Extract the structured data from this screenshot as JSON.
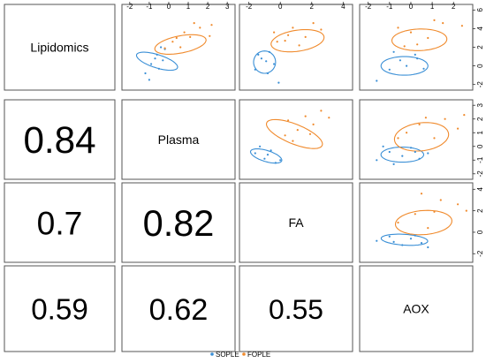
{
  "chart_data": {
    "type": "scatter",
    "subtype": "pairs-matrix",
    "variables": [
      "Lipidomics",
      "Plasma",
      "FA",
      "AOX"
    ],
    "correlations": [
      {
        "row": "Plasma",
        "col": "Lipidomics",
        "value": "0.84"
      },
      {
        "row": "FA",
        "col": "Lipidomics",
        "value": "0.7"
      },
      {
        "row": "FA",
        "col": "Plasma",
        "value": "0.82"
      },
      {
        "row": "AOX",
        "col": "Lipidomics",
        "value": "0.59"
      },
      {
        "row": "AOX",
        "col": "Plasma",
        "value": "0.62"
      },
      {
        "row": "AOX",
        "col": "FA",
        "value": "0.55"
      }
    ],
    "axes": {
      "top": {
        "Plasma": {
          "range": [
            -2.4,
            3.4
          ],
          "ticks": [
            "-2",
            "-1",
            "0",
            "1",
            "2",
            "3"
          ]
        },
        "FA": {
          "range": [
            -2.6,
            4.6
          ],
          "ticks": [
            "-2",
            "0",
            "2",
            "4"
          ]
        },
        "AOX": {
          "range": [
            -2.4,
            2.9
          ],
          "ticks": [
            "-2",
            "-1",
            "0",
            "1",
            "2"
          ]
        }
      },
      "right": {
        "Lipidomics": {
          "range": [
            -2.6,
            6.6
          ],
          "ticks": [
            "-2",
            "0",
            "2",
            "4",
            "6"
          ]
        },
        "Plasma": {
          "range": [
            -2.4,
            3.4
          ],
          "ticks": [
            "-2",
            "-1",
            "0",
            "1",
            "2",
            "3"
          ]
        },
        "FA": {
          "range": [
            -2.8,
            4.6
          ],
          "ticks": [
            "-2",
            "0",
            "2",
            "4"
          ]
        }
      }
    },
    "series": [
      {
        "name": "SOPLE",
        "color": "#3a8fd6"
      },
      {
        "name": "FOPLE",
        "color": "#f08a2c"
      }
    ],
    "panels": [
      {
        "x": "Plasma",
        "y": "Lipidomics",
        "ellipses": {
          "SOPLE": {
            "cx": -0.6,
            "cy": 0.5,
            "rx": 1.2,
            "ry": 2.6,
            "rot": 0.85
          },
          "FOPLE": {
            "cx": 0.6,
            "cy": 2.3,
            "rx": 2.9,
            "ry": 1.7,
            "rot": 0.55
          }
        },
        "points": {
          "SOPLE": [
            [
              -1.2,
              -0.8
            ],
            [
              -0.9,
              0.2
            ],
            [
              -0.6,
              1.2
            ],
            [
              -0.3,
              0.6
            ],
            [
              -0.5,
              -0.3
            ],
            [
              -1.0,
              -1.5
            ],
            [
              -0.2,
              1.8
            ],
            [
              -0.7,
              0.8
            ],
            [
              -0.4,
              2.0
            ]
          ],
          "FOPLE": [
            [
              0.2,
              2.6
            ],
            [
              0.6,
              2.0
            ],
            [
              1.1,
              3.1
            ],
            [
              1.6,
              4.1
            ],
            [
              2.1,
              3.2
            ],
            [
              0.8,
              3.6
            ],
            [
              1.3,
              4.6
            ],
            [
              -0.2,
              1.9
            ],
            [
              0.4,
              3.0
            ],
            [
              2.2,
              4.4
            ]
          ]
        }
      },
      {
        "x": "FA",
        "y": "Lipidomics",
        "ellipses": {
          "SOPLE": {
            "cx": -1.0,
            "cy": 0.4,
            "rx": 1.4,
            "ry": 2.4,
            "rot": 0.0
          },
          "FOPLE": {
            "cx": 1.1,
            "cy": 2.7,
            "rx": 3.5,
            "ry": 2.2,
            "rot": 0.35
          }
        },
        "points": {
          "SOPLE": [
            [
              -1.6,
              -0.4
            ],
            [
              -1.2,
              0.8
            ],
            [
              -0.7,
              1.5
            ],
            [
              -0.4,
              0.2
            ],
            [
              -1.4,
              1.2
            ],
            [
              -0.8,
              -0.8
            ],
            [
              -0.1,
              -1.8
            ],
            [
              -0.9,
              0.5
            ]
          ],
          "FOPLE": [
            [
              -0.4,
              3.6
            ],
            [
              0.3,
              2.7
            ],
            [
              0.8,
              4.1
            ],
            [
              1.6,
              3.1
            ],
            [
              2.1,
              4.6
            ],
            [
              0.5,
              3.3
            ],
            [
              1.2,
              2.2
            ],
            [
              2.6,
              3.9
            ],
            [
              -0.2,
              2.6
            ]
          ]
        }
      },
      {
        "x": "AOX",
        "y": "Lipidomics",
        "ellipses": {
          "SOPLE": {
            "cx": -0.3,
            "cy": 0.0,
            "rx": 2.2,
            "ry": 2.0,
            "rot": 0.0
          },
          "FOPLE": {
            "cx": 0.4,
            "cy": 2.8,
            "rx": 2.6,
            "ry": 2.3,
            "rot": 0.3
          }
        },
        "points": {
          "SOPLE": [
            [
              -1.6,
              -1.6
            ],
            [
              -1.0,
              -0.4
            ],
            [
              -0.5,
              0.6
            ],
            [
              0.2,
              1.2
            ],
            [
              -0.8,
              1.5
            ],
            [
              0.6,
              -0.3
            ],
            [
              -0.2,
              0.0
            ],
            [
              0.3,
              0.8
            ]
          ],
          "FOPLE": [
            [
              -0.6,
              4.1
            ],
            [
              0.0,
              3.6
            ],
            [
              0.8,
              3.0
            ],
            [
              1.5,
              4.6
            ],
            [
              2.4,
              4.3
            ],
            [
              0.3,
              2.3
            ],
            [
              -0.3,
              2.1
            ],
            [
              1.1,
              4.9
            ]
          ]
        }
      },
      {
        "x": "FA",
        "y": "Plasma",
        "ellipses": {
          "SOPLE": {
            "cx": -0.9,
            "cy": -0.7,
            "rx": 2.1,
            "ry": 0.8,
            "rot": -0.35
          },
          "FOPLE": {
            "cx": 0.9,
            "cy": 0.9,
            "rx": 3.9,
            "ry": 1.4,
            "rot": -0.45
          }
        },
        "points": {
          "SOPLE": [
            [
              -1.6,
              -0.5
            ],
            [
              -1.0,
              -0.9
            ],
            [
              -0.6,
              -0.3
            ],
            [
              -0.3,
              -1.2
            ],
            [
              -1.3,
              0.0
            ],
            [
              -0.8,
              -0.6
            ],
            [
              0.0,
              -1.0
            ]
          ],
          "FOPLE": [
            [
              0.3,
              0.8
            ],
            [
              1.1,
              1.2
            ],
            [
              1.6,
              2.2
            ],
            [
              2.1,
              1.6
            ],
            [
              2.6,
              2.6
            ],
            [
              0.8,
              0.4
            ],
            [
              3.1,
              2.1
            ],
            [
              0.5,
              1.9
            ],
            [
              1.9,
              0.9
            ]
          ]
        }
      },
      {
        "x": "AOX",
        "y": "Plasma",
        "ellipses": {
          "SOPLE": {
            "cx": -0.4,
            "cy": -0.6,
            "rx": 2.0,
            "ry": 1.1,
            "rot": 0.0
          },
          "FOPLE": {
            "cx": 0.5,
            "cy": 0.7,
            "rx": 2.6,
            "ry": 2.0,
            "rot": 0.35
          }
        },
        "points": {
          "SOPLE": [
            [
              -1.6,
              -1.0
            ],
            [
              -1.0,
              -0.4
            ],
            [
              -0.4,
              -0.7
            ],
            [
              0.0,
              -0.1
            ],
            [
              0.4,
              -0.9
            ],
            [
              -0.8,
              -1.3
            ],
            [
              0.8,
              -0.5
            ],
            [
              -1.3,
              0.0
            ],
            [
              0.2,
              -0.4
            ]
          ],
          "FOPLE": [
            [
              -0.2,
              1.0
            ],
            [
              0.4,
              1.6
            ],
            [
              1.1,
              0.6
            ],
            [
              1.6,
              2.0
            ],
            [
              2.2,
              1.3
            ],
            [
              0.7,
              2.1
            ],
            [
              2.5,
              2.3
            ],
            [
              -0.6,
              0.6
            ]
          ]
        }
      },
      {
        "x": "AOX",
        "y": "FA",
        "ellipses": {
          "SOPLE": {
            "cx": -0.3,
            "cy": -0.7,
            "rx": 2.2,
            "ry": 1.0,
            "rot": -0.15
          },
          "FOPLE": {
            "cx": 0.6,
            "cy": 0.9,
            "rx": 2.7,
            "ry": 2.2,
            "rot": 0.35
          }
        },
        "points": {
          "SOPLE": [
            [
              -1.6,
              -0.8
            ],
            [
              -1.0,
              -0.4
            ],
            [
              -0.4,
              -1.2
            ],
            [
              0.0,
              -0.6
            ],
            [
              0.5,
              -1.0
            ],
            [
              -0.8,
              -0.9
            ],
            [
              0.8,
              -1.4
            ],
            [
              0.2,
              -0.3
            ]
          ],
          "FOPLE": [
            [
              -0.6,
              0.9
            ],
            [
              0.2,
              1.7
            ],
            [
              0.8,
              0.4
            ],
            [
              1.4,
              3.0
            ],
            [
              2.2,
              2.6
            ],
            [
              0.5,
              3.6
            ],
            [
              1.1,
              1.9
            ],
            [
              2.6,
              2.0
            ]
          ]
        }
      }
    ],
    "legend": {
      "position": "bottom-center",
      "entries": [
        "SOPLE",
        "FOPLE"
      ]
    }
  }
}
